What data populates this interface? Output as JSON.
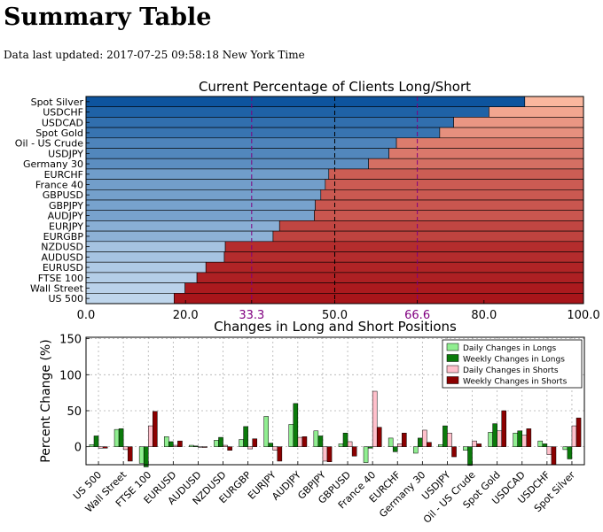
{
  "page": {
    "title": "Summary Table",
    "updated_label": "Data last updated:",
    "updated_value": "2017-07-25 09:58:18 New York Time"
  },
  "chart_data": [
    {
      "type": "bar",
      "orientation": "horizontal",
      "stacked": true,
      "title": "Current Percentage of Clients Long/Short",
      "xlim": [
        0,
        100
      ],
      "x_ticks": [
        {
          "value": 0,
          "label": "0.0",
          "color": "#000000"
        },
        {
          "value": 20,
          "label": "20.0",
          "color": "#000000"
        },
        {
          "value": 33.3,
          "label": "33.3",
          "color": "#800080"
        },
        {
          "value": 50,
          "label": "50.0",
          "color": "#000000"
        },
        {
          "value": 66.6,
          "label": "66.6",
          "color": "#800080"
        },
        {
          "value": 80,
          "label": "80.0",
          "color": "#000000"
        },
        {
          "value": 100,
          "label": "100.0",
          "color": "#000000"
        }
      ],
      "reference_lines": [
        {
          "value": 33.3,
          "color": "#800080",
          "style": "dashed"
        },
        {
          "value": 50,
          "color": "#000000",
          "style": "dashed"
        },
        {
          "value": 66.6,
          "color": "#800080",
          "style": "dashed"
        }
      ],
      "categories": [
        "Spot Silver",
        "USDCHF",
        "USDCAD",
        "Spot Gold",
        "Oil - US Crude",
        "USDJPY",
        "Germany 30",
        "EURCHF",
        "France 40",
        "GBPUSD",
        "GBPJPY",
        "AUDJPY",
        "EURJPY",
        "EURGBP",
        "NZDUSD",
        "AUDUSD",
        "EURUSD",
        "FTSE 100",
        "Wall Street",
        "US 500"
      ],
      "long_percent": [
        88.2,
        81.0,
        73.9,
        71.1,
        62.4,
        60.9,
        56.8,
        48.8,
        48.1,
        47.2,
        46.1,
        45.9,
        38.9,
        37.6,
        28.0,
        27.8,
        24.1,
        22.3,
        19.9,
        17.7
      ],
      "grid": true,
      "palette": {
        "long_dark": "#08519c",
        "long_light": "#c6dbef",
        "short_dark": "#a50f15",
        "short_light": "#fcbba1"
      }
    },
    {
      "type": "bar",
      "title": "Changes in Long and Short Positions",
      "ylabel": "Percent Change (%)",
      "ylim": [
        -25,
        152
      ],
      "y_ticks": [
        0,
        50,
        100,
        150
      ],
      "grid": true,
      "legend_position": "top-right",
      "categories": [
        "US 500",
        "Wall Street",
        "FTSE 100",
        "EURUSD",
        "AUDUSD",
        "NZDUSD",
        "EURGBP",
        "EURJPY",
        "AUDJPY",
        "GBPJPY",
        "GBPUSD",
        "France 40",
        "EURCHF",
        "Germany 30",
        "USDJPY",
        "Oil - US Crude",
        "Spot Gold",
        "USDCAD",
        "USDCHF",
        "Spot Silver"
      ],
      "series": [
        {
          "name": "Daily Changes in Longs",
          "color": "#90ee90",
          "values": [
            3,
            24,
            -23,
            14,
            2,
            9,
            10,
            42,
            31,
            22,
            4,
            -22,
            12,
            -9,
            3,
            -5,
            20,
            19,
            8,
            -4
          ]
        },
        {
          "name": "Weekly Changes in Longs",
          "color": "#0b7a0b",
          "values": [
            15,
            25,
            -28,
            7,
            1,
            13,
            28,
            5,
            60,
            15,
            19,
            -2,
            -7,
            12,
            29,
            -26,
            32,
            22,
            4,
            -17
          ]
        },
        {
          "name": "Daily Changes in Shorts",
          "color": "#ffc0cb",
          "values": [
            -2,
            -4,
            29,
            2,
            -1,
            2,
            -3,
            -5,
            13,
            -20,
            7,
            77,
            4,
            23,
            19,
            8,
            22,
            16,
            -11,
            29
          ]
        },
        {
          "name": "Weekly Changes in Shorts",
          "color": "#8b0000",
          "values": [
            -2,
            -20,
            49,
            8,
            -1,
            -5,
            11,
            -20,
            14,
            -21,
            -13,
            27,
            19,
            6,
            -14,
            4,
            50,
            25,
            -25,
            40
          ]
        }
      ]
    }
  ]
}
